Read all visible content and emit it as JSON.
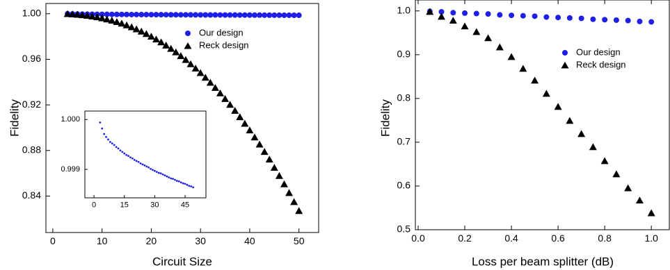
{
  "chart_data": [
    {
      "type": "scatter",
      "x_label": "Circuit Size",
      "y_label": "Fidelity",
      "xlim": [
        -1.4,
        54
      ],
      "ylim": [
        0.808,
        1.009
      ],
      "xticks": [
        0,
        10,
        20,
        30,
        40,
        50
      ],
      "yticks": [
        0.84,
        0.88,
        0.92,
        0.96,
        {
          "value": 1,
          "label": "1.00"
        }
      ],
      "legend": "upper right",
      "x": [
        3,
        4,
        5,
        6,
        7,
        8,
        9,
        10,
        11,
        12,
        13,
        14,
        15,
        16,
        17,
        18,
        19,
        20,
        21,
        22,
        23,
        24,
        25,
        26,
        27,
        28,
        29,
        30,
        31,
        32,
        33,
        34,
        35,
        36,
        37,
        38,
        39,
        40,
        41,
        42,
        43,
        44,
        45,
        46,
        47,
        48,
        49,
        50
      ],
      "series": [
        {
          "name": "Our design",
          "color": "#1f1fe6",
          "marker": "circle",
          "values": [
            0.99994,
            0.99982,
            0.99971,
            0.99965,
            0.9996,
            0.99955,
            0.99952,
            0.99949,
            0.99945,
            0.99942,
            0.99938,
            0.99935,
            0.99932,
            0.99929,
            0.99927,
            0.99924,
            0.99922,
            0.99919,
            0.99917,
            0.99915,
            0.99912,
            0.9991,
            0.99908,
            0.99906,
            0.99904,
            0.99901,
            0.99899,
            0.99897,
            0.99895,
            0.99893,
            0.99892,
            0.9989,
            0.99888,
            0.99886,
            0.99884,
            0.99882,
            0.99881,
            0.99879,
            0.99877,
            0.99876,
            0.99874,
            0.99872,
            0.99871,
            0.99869,
            0.99867,
            0.99866,
            0.99864,
            0.99862
          ]
        },
        {
          "name": "Reck design",
          "color": "#000000",
          "marker": "triangle",
          "values": [
            0.9998,
            0.9995,
            0.9992,
            0.9988,
            0.9983,
            0.9977,
            0.997,
            0.9961,
            0.9951,
            0.994,
            0.9928,
            0.9914,
            0.9899,
            0.9882,
            0.9864,
            0.9844,
            0.9823,
            0.98,
            0.9775,
            0.975,
            0.9722,
            0.9693,
            0.9662,
            0.9629,
            0.9595,
            0.9558,
            0.952,
            0.948,
            0.9439,
            0.9395,
            0.935,
            0.9302,
            0.9253,
            0.9202,
            0.9149,
            0.9093,
            0.9036,
            0.8977,
            0.8915,
            0.8853,
            0.8788,
            0.8721,
            0.8649,
            0.8577,
            0.8504,
            0.8427,
            0.8348,
            0.827
          ]
        }
      ]
    },
    {
      "type": "scatter",
      "xlim": [
        -4.5,
        55.3
      ],
      "ylim": [
        0.99843,
        1.00017
      ],
      "xticks": [
        0,
        15,
        30,
        45
      ],
      "yticks": [
        0.999,
        {
          "value": 1,
          "label": "1.000"
        }
      ],
      "x": [
        3,
        4,
        5,
        6,
        7,
        8,
        9,
        10,
        11,
        12,
        13,
        14,
        15,
        16,
        17,
        18,
        19,
        20,
        21,
        22,
        23,
        24,
        25,
        26,
        27,
        28,
        29,
        30,
        31,
        32,
        33,
        34,
        35,
        36,
        37,
        38,
        39,
        40,
        41,
        42,
        43,
        44,
        45,
        46,
        47,
        48,
        49
      ],
      "series": [
        {
          "color": "#1f1fe6",
          "marker": "dot",
          "values": [
            0.99994,
            0.99982,
            0.99971,
            0.99965,
            0.9996,
            0.99955,
            0.99952,
            0.99949,
            0.99945,
            0.99942,
            0.99938,
            0.99935,
            0.99932,
            0.99929,
            0.99927,
            0.99924,
            0.99922,
            0.99919,
            0.99917,
            0.99915,
            0.99912,
            0.9991,
            0.99908,
            0.99906,
            0.99904,
            0.99901,
            0.99899,
            0.99897,
            0.99895,
            0.99893,
            0.99892,
            0.9989,
            0.99888,
            0.99886,
            0.99884,
            0.99882,
            0.99881,
            0.99879,
            0.99877,
            0.99876,
            0.99874,
            0.99872,
            0.99871,
            0.99869,
            0.99867,
            0.99866,
            0.99864
          ]
        }
      ]
    },
    {
      "type": "scatter",
      "x_label": "Loss per beam splitter (dB)",
      "y_label": "Fidelity",
      "xlim": [
        -0.012,
        1.077
      ],
      "ylim": [
        0.5,
        1.025
      ],
      "xticks": [
        {
          "value": 0,
          "label": "0.0"
        },
        0.2,
        0.4,
        0.6,
        0.8,
        {
          "value": 1,
          "label": "1.0"
        }
      ],
      "yticks": [
        0.5,
        0.6,
        0.7,
        0.8,
        0.9,
        {
          "value": 1,
          "label": "1.0"
        }
      ],
      "legend": "upper right",
      "x": [
        0.05,
        0.1,
        0.15,
        0.2,
        0.25,
        0.3,
        0.35,
        0.4,
        0.45,
        0.5,
        0.55,
        0.6,
        0.65,
        0.7,
        0.75,
        0.8,
        0.85,
        0.9,
        0.95,
        1.0
      ],
      "series": [
        {
          "name": "Our design",
          "color": "#1f1fe6",
          "marker": "circle",
          "values": [
            0.999,
            0.998,
            0.996,
            0.995,
            0.994,
            0.993,
            0.991,
            0.99,
            0.989,
            0.988,
            0.986,
            0.985,
            0.984,
            0.983,
            0.981,
            0.98,
            0.979,
            0.978,
            0.976,
            0.975
          ]
        },
        {
          "name": "Reck design",
          "color": "#000000",
          "marker": "triangle",
          "values": [
            0.998,
            0.987,
            0.978,
            0.965,
            0.952,
            0.938,
            0.917,
            0.895,
            0.868,
            0.841,
            0.811,
            0.781,
            0.749,
            0.719,
            0.689,
            0.657,
            0.627,
            0.595,
            0.567,
            0.538
          ]
        }
      ]
    }
  ]
}
